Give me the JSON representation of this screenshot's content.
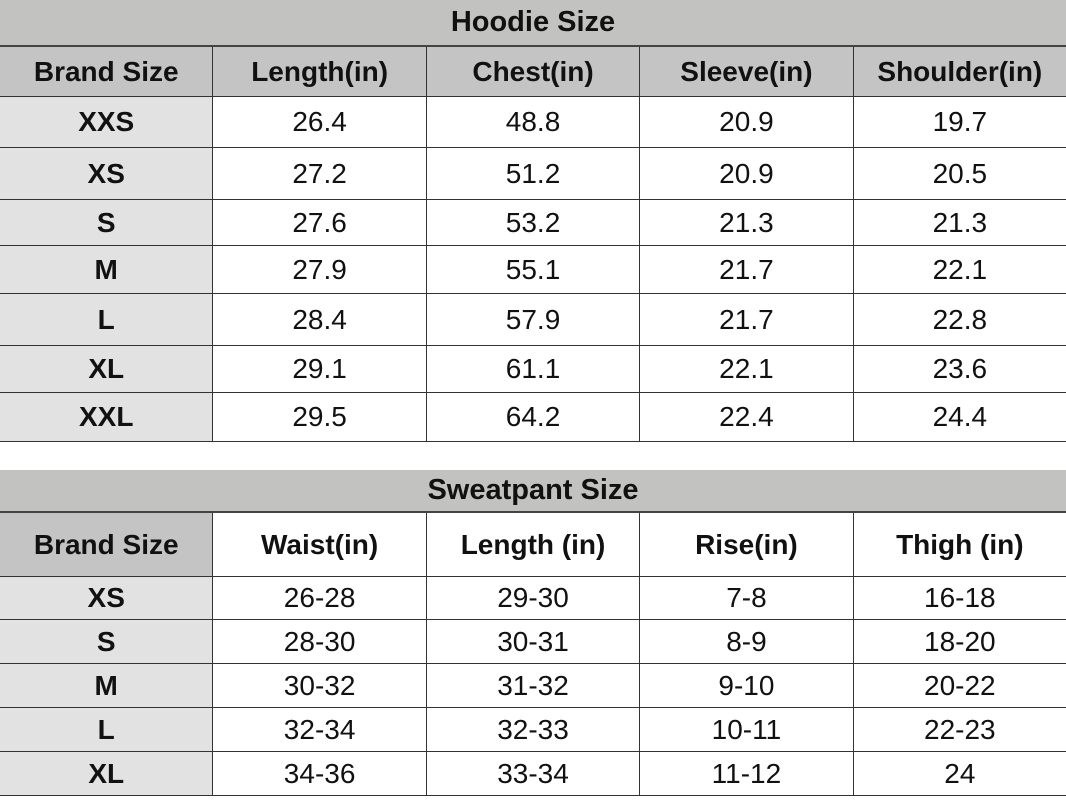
{
  "hoodie": {
    "title": "Hoodie Size",
    "headers": [
      "Brand Size",
      "Length(in)",
      "Chest(in)",
      "Sleeve(in)",
      "Shoulder(in)"
    ],
    "rows": [
      [
        "XXS",
        "26.4",
        "48.8",
        "20.9",
        "19.7"
      ],
      [
        "XS",
        "27.2",
        "51.2",
        "20.9",
        "20.5"
      ],
      [
        "S",
        "27.6",
        "53.2",
        "21.3",
        "21.3"
      ],
      [
        "M",
        "27.9",
        "55.1",
        "21.7",
        "22.1"
      ],
      [
        "L",
        "28.4",
        "57.9",
        "21.7",
        "22.8"
      ],
      [
        "XL",
        "29.1",
        "61.1",
        "22.1",
        "23.6"
      ],
      [
        "XXL",
        "29.5",
        "64.2",
        "22.4",
        "24.4"
      ]
    ]
  },
  "sweatpant": {
    "title": "Sweatpant Size",
    "headers": [
      "Brand Size",
      "Waist(in)",
      "Length  (in)",
      "Rise(in)",
      "Thigh (in)"
    ],
    "rows": [
      [
        "XS",
        "26-28",
        "29-30",
        "7-8",
        "16-18"
      ],
      [
        "S",
        "28-30",
        "30-31",
        "8-9",
        "18-20"
      ],
      [
        "M",
        "30-32",
        "31-32",
        "9-10",
        "20-22"
      ],
      [
        "L",
        "32-34",
        "32-33",
        "10-11",
        "22-23"
      ],
      [
        "XL",
        "34-36",
        "33-34",
        "11-12",
        "24"
      ]
    ]
  }
}
